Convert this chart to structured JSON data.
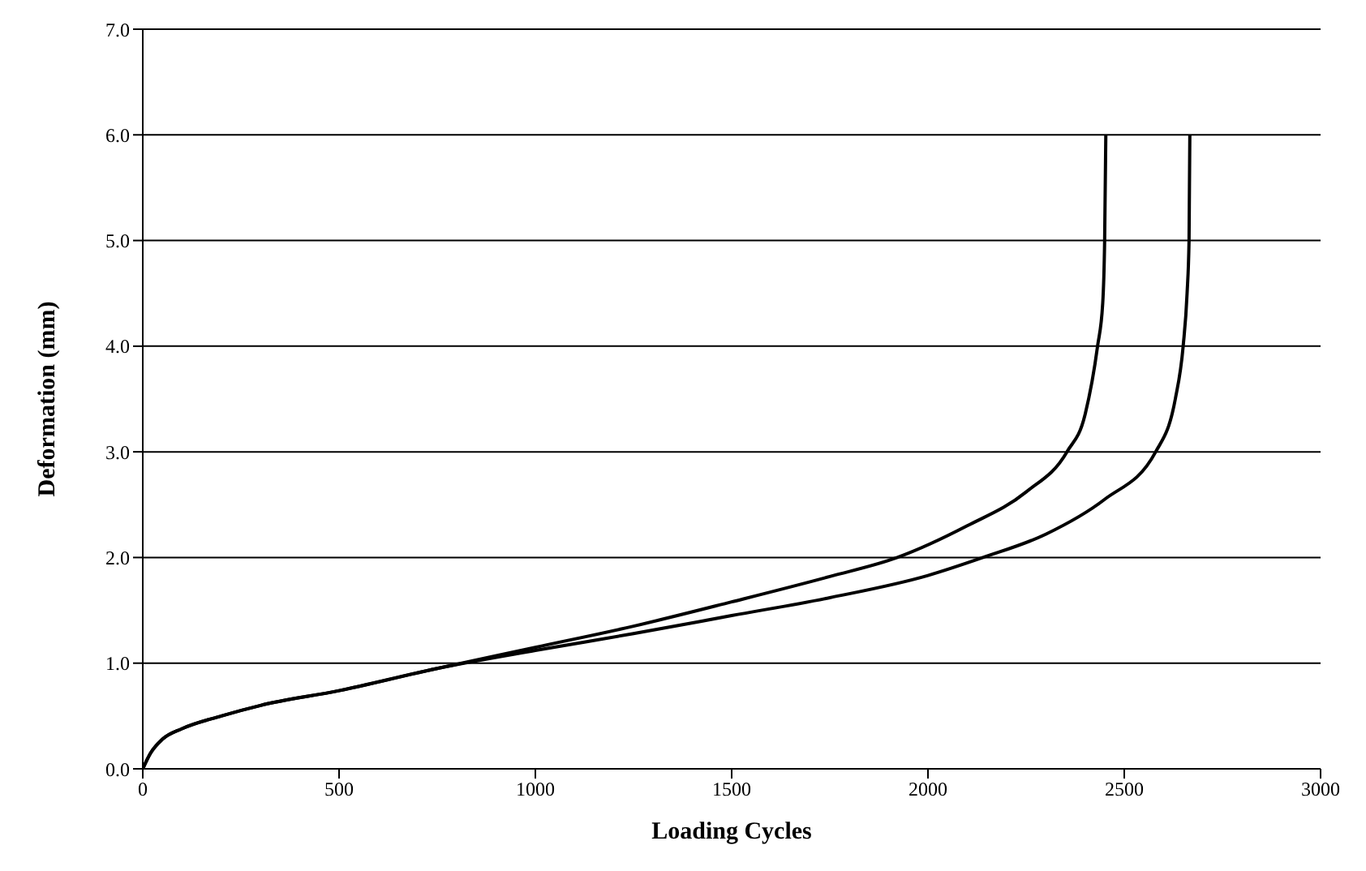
{
  "chart_data": {
    "type": "line",
    "xlabel": "Loading Cycles",
    "ylabel": "Deformation (mm)",
    "xlim": [
      0,
      3000
    ],
    "ylim": [
      0,
      7
    ],
    "xticks": [
      0,
      500,
      1000,
      1500,
      2000,
      2500,
      3000
    ],
    "yticks": [
      {
        "value": 0,
        "label": "0.0"
      },
      {
        "value": 1,
        "label": "1.0"
      },
      {
        "value": 2,
        "label": "2.0"
      },
      {
        "value": 3,
        "label": "3.0"
      },
      {
        "value": 4,
        "label": "4.0"
      },
      {
        "value": 5,
        "label": "5.0"
      },
      {
        "value": 6,
        "label": "6.0"
      },
      {
        "value": 7,
        "label": "7.0"
      }
    ],
    "grid": "y",
    "marker": "none",
    "line_style": "solid",
    "series": [
      {
        "color": "#000000",
        "x": [
          0,
          20,
          50,
          100,
          200,
          300,
          500,
          750,
          1000,
          1250,
          1500,
          1750,
          1922,
          2100,
          2250,
          2354,
          2400,
          2432,
          2445,
          2450,
          2453
        ],
        "values": [
          0,
          0.15,
          0.28,
          0.38,
          0.5,
          0.6,
          0.74,
          0.95,
          1.15,
          1.35,
          1.58,
          1.82,
          2.0,
          2.3,
          2.62,
          3.0,
          3.35,
          4.0,
          4.4,
          5.0,
          6.0
        ]
      },
      {
        "color": "#000000",
        "x": [
          0,
          20,
          50,
          100,
          200,
          300,
          500,
          750,
          1000,
          1250,
          1500,
          1750,
          2000,
          2140,
          2300,
          2450,
          2580,
          2630,
          2650,
          2660,
          2665,
          2667
        ],
        "values": [
          0,
          0.15,
          0.28,
          0.38,
          0.5,
          0.6,
          0.74,
          0.95,
          1.12,
          1.28,
          1.45,
          1.62,
          1.83,
          2.0,
          2.22,
          2.55,
          3.0,
          3.5,
          4.0,
          4.5,
          5.0,
          6.0
        ]
      }
    ]
  }
}
